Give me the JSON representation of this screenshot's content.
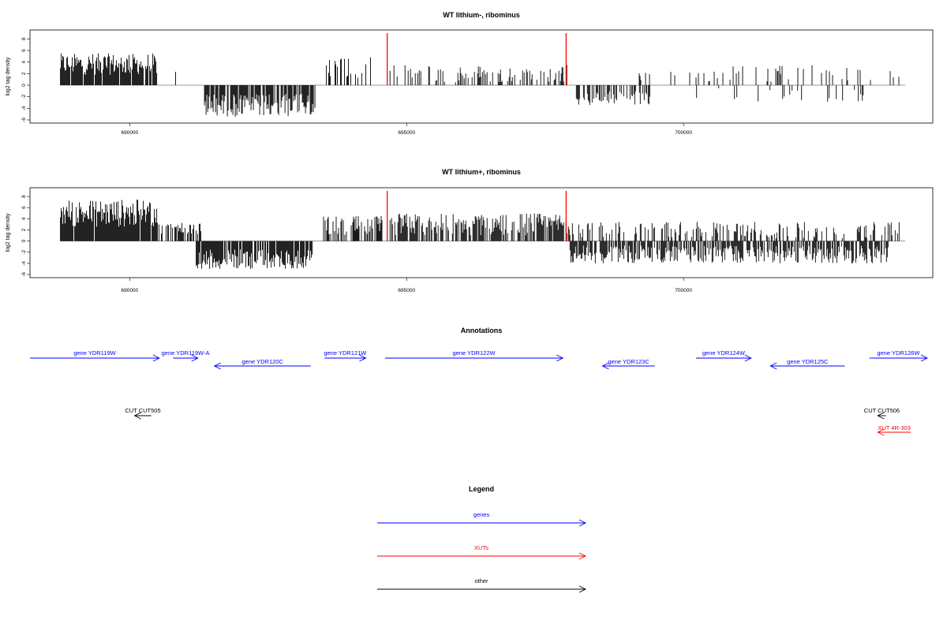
{
  "chart_data": [
    {
      "type": "bar",
      "title": "WT lithium-, ribominus",
      "ylabel": "log2 tag density",
      "xlim": [
        688200,
        704500
      ],
      "ylim": [
        -6,
        9
      ],
      "x_ticks": [
        690000,
        695000,
        700000
      ],
      "y_ticks": [
        -6,
        -4,
        -2,
        0,
        2,
        4,
        6,
        8
      ],
      "markers": [
        {
          "x": 694650,
          "color": "#ff0000"
        },
        {
          "x": 697880,
          "color": "#ff0000"
        }
      ],
      "segments": [
        {
          "start": 688750,
          "end": 690500,
          "min": 1.8,
          "max": 5.5,
          "density": 0.9,
          "sign": 1
        },
        {
          "start": 690800,
          "end": 691200,
          "min": 1.0,
          "max": 3.0,
          "density": 0.05,
          "sign": 1
        },
        {
          "start": 691350,
          "end": 693350,
          "min": 1.5,
          "max": 5.5,
          "density": 0.8,
          "sign": -1
        },
        {
          "start": 693550,
          "end": 694350,
          "min": 0.8,
          "max": 5.0,
          "density": 0.35,
          "sign": 1
        },
        {
          "start": 694700,
          "end": 697900,
          "min": 0.5,
          "max": 3.5,
          "density": 0.3,
          "sign": 1
        },
        {
          "start": 697950,
          "end": 699400,
          "min": 1.0,
          "max": 3.5,
          "density": 0.55,
          "sign": -1
        },
        {
          "start": 699200,
          "end": 703900,
          "min": 0.5,
          "max": 3.5,
          "density": 0.12,
          "sign": 1
        },
        {
          "start": 700050,
          "end": 703800,
          "min": 0.5,
          "max": 3.0,
          "density": 0.08,
          "sign": -1
        }
      ]
    },
    {
      "type": "bar",
      "title": "WT lithium+, ribominus",
      "ylabel": "log2 tag density",
      "xlim": [
        688200,
        704500
      ],
      "ylim": [
        -6,
        9
      ],
      "x_ticks": [
        690000,
        695000,
        700000
      ],
      "y_ticks": [
        -6,
        -4,
        -2,
        0,
        2,
        4,
        6,
        8
      ],
      "markers": [
        {
          "x": 694650,
          "color": "#ff0000"
        },
        {
          "x": 697880,
          "color": "#ff0000"
        }
      ],
      "segments": [
        {
          "start": 688750,
          "end": 690500,
          "min": 2.5,
          "max": 7.5,
          "density": 0.95,
          "sign": 1
        },
        {
          "start": 690500,
          "end": 691300,
          "min": 1.0,
          "max": 3.5,
          "density": 0.5,
          "sign": 1
        },
        {
          "start": 691200,
          "end": 693300,
          "min": 1.5,
          "max": 5.0,
          "density": 0.85,
          "sign": -1
        },
        {
          "start": 693500,
          "end": 694600,
          "min": 0.8,
          "max": 4.5,
          "density": 0.55,
          "sign": 1
        },
        {
          "start": 694700,
          "end": 697950,
          "min": 1.0,
          "max": 5.0,
          "density": 0.75,
          "sign": 1
        },
        {
          "start": 697950,
          "end": 703700,
          "min": 0.8,
          "max": 4.0,
          "density": 0.7,
          "sign": -1
        },
        {
          "start": 697950,
          "end": 703900,
          "min": 0.5,
          "max": 3.5,
          "density": 0.3,
          "sign": 1
        }
      ]
    }
  ],
  "annotations_title": "Annotations",
  "features": [
    {
      "label": "gene YDR119W",
      "start": 688200,
      "end": 690550,
      "strand": "+",
      "row": 0,
      "color": "#0000ff"
    },
    {
      "label": "gene YDR119W-A",
      "start": 690800,
      "end": 691250,
      "strand": "+",
      "row": 0,
      "color": "#0000ff"
    },
    {
      "label": "gene YDR120C",
      "start": 691550,
      "end": 693300,
      "strand": "-",
      "row": 1,
      "color": "#0000ff"
    },
    {
      "label": "gene YDR121W",
      "start": 693550,
      "end": 694300,
      "strand": "+",
      "row": 0,
      "color": "#0000ff"
    },
    {
      "label": "gene YDR122W",
      "start": 694650,
      "end": 697880,
      "strand": "+",
      "row": 0,
      "color": "#0000ff"
    },
    {
      "label": "gene YDR123C",
      "start": 698600,
      "end": 699550,
      "strand": "-",
      "row": 2,
      "color": "#0000ff"
    },
    {
      "label": "gene YDR124W",
      "start": 700300,
      "end": 701300,
      "strand": "+",
      "row": 0,
      "color": "#0000ff"
    },
    {
      "label": "gene YDR125C",
      "start": 701650,
      "end": 703000,
      "strand": "-",
      "row": 1,
      "color": "#0000ff"
    },
    {
      "label": "gene YDR126W",
      "start": 703450,
      "end": 704500,
      "strand": "+",
      "row": 0,
      "color": "#0000ff"
    },
    {
      "label": "CUT CUT505",
      "start": 690100,
      "end": 690400,
      "strand": "-",
      "row": 3,
      "color": "#000000"
    },
    {
      "label": "CUT CUT506",
      "start": 703600,
      "end": 703750,
      "strand": "-",
      "row": 3,
      "color": "#000000"
    },
    {
      "label": "XUT 4R-303",
      "start": 703600,
      "end": 704200,
      "strand": "-",
      "row": 4,
      "color": "#ff0000"
    }
  ],
  "legend": {
    "title": "Legend",
    "items": [
      {
        "label": "genes",
        "color": "#0000ff"
      },
      {
        "label": "XUTs",
        "color": "#ff0000"
      },
      {
        "label": "other",
        "color": "#000000"
      }
    ]
  }
}
